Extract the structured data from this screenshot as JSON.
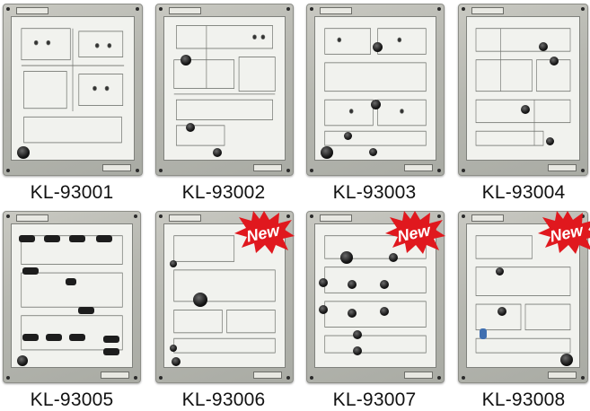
{
  "products": [
    {
      "model": "KL-93001",
      "is_new": false
    },
    {
      "model": "KL-93002",
      "is_new": false
    },
    {
      "model": "KL-93003",
      "is_new": false
    },
    {
      "model": "KL-93004",
      "is_new": false
    },
    {
      "model": "KL-93005",
      "is_new": false
    },
    {
      "model": "KL-93006",
      "is_new": true
    },
    {
      "model": "KL-93007",
      "is_new": true
    },
    {
      "model": "KL-93008",
      "is_new": true
    }
  ],
  "badge": {
    "text": "New",
    "color": "#e0181e",
    "text_color": "#ffffff"
  }
}
